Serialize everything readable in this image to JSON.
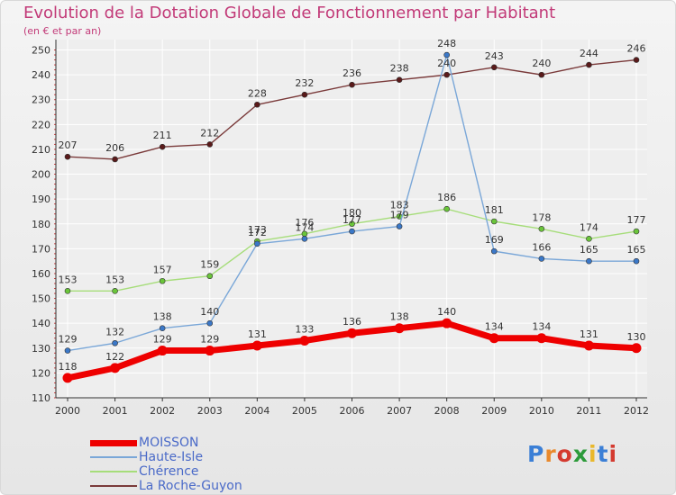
{
  "title": "Evolution de la Dotation Globale de Fonctionnement par Habitant",
  "subtitle": "(en € et par an)",
  "logo": {
    "letters": [
      {
        "ch": "P",
        "color": "#3b7fd6"
      },
      {
        "ch": "r",
        "color": "#e9892c"
      },
      {
        "ch": "o",
        "color": "#d43a2f"
      },
      {
        "ch": "x",
        "color": "#2d9b3a"
      },
      {
        "ch": "i",
        "color": "#e9b82c"
      },
      {
        "ch": "t",
        "color": "#3b7fd6"
      },
      {
        "ch": "i",
        "color": "#d43a2f"
      }
    ]
  },
  "chart_data": {
    "type": "line",
    "title": "Evolution de la Dotation Globale de Fonctionnement par Habitant",
    "subtitle": "(en € et par an)",
    "xlabel": "",
    "ylabel": "",
    "x": [
      "2000",
      "2001",
      "2002",
      "2003",
      "2004",
      "2005",
      "2006",
      "2007",
      "2008",
      "2009",
      "2010",
      "2011",
      "2012"
    ],
    "ylim": [
      110,
      252
    ],
    "yticks": [
      110,
      120,
      130,
      140,
      150,
      160,
      170,
      180,
      190,
      200,
      210,
      220,
      230,
      240,
      250
    ],
    "grid": true,
    "legend_position": "bottom-left",
    "series": [
      {
        "name": "MOISSON",
        "color": "#ee0000",
        "marker": "#ee0000",
        "width": 7,
        "values": [
          118,
          122,
          129,
          129,
          131,
          133,
          136,
          138,
          140,
          134,
          134,
          131,
          130
        ],
        "labels": [
          "118",
          "122",
          "129",
          "129",
          "131",
          "133",
          "136",
          "138",
          "140",
          "134",
          "134",
          "131",
          "130"
        ]
      },
      {
        "name": "Haute-Isle",
        "color": "#7aa7d8",
        "marker": "#3b78c8",
        "width": 1.4,
        "values": [
          129,
          132,
          138,
          140,
          172,
          174,
          177,
          179,
          248,
          169,
          166,
          165,
          165
        ],
        "labels": [
          "129",
          "132",
          "138",
          "140",
          "172",
          "174",
          "177",
          "179",
          "248",
          "169",
          "166",
          "165",
          "165"
        ]
      },
      {
        "name": "Chérence",
        "color": "#a6dd7a",
        "marker": "#6ac53a",
        "width": 1.4,
        "values": [
          153,
          153,
          157,
          159,
          173,
          176,
          180,
          183,
          186,
          181,
          178,
          174,
          177
        ],
        "labels": [
          "153",
          "153",
          "157",
          "159",
          "173",
          "176",
          "180",
          "183",
          "186",
          "181",
          "178",
          "174",
          "177"
        ]
      },
      {
        "name": "La Roche-Guyon",
        "color": "#7a3a3a",
        "marker": "#5a1a1a",
        "width": 1.4,
        "values": [
          207,
          206,
          211,
          212,
          228,
          232,
          236,
          238,
          240,
          243,
          240,
          244,
          246
        ],
        "labels": [
          "207",
          "206",
          "211",
          "212",
          "228",
          "232",
          "236",
          "238",
          "240",
          "243",
          "240",
          "244",
          "246"
        ]
      }
    ]
  }
}
